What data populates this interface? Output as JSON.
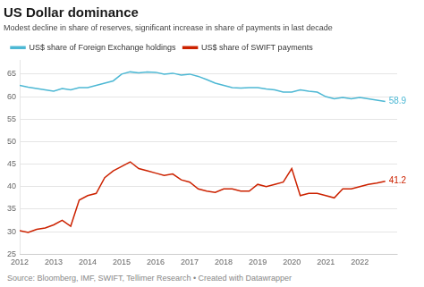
{
  "chart_data": {
    "type": "line",
    "title": "US Dollar dominance",
    "subtitle": "Modest decline in share of reserves, significant increase in share of payments in last decade",
    "source": "Source: Bloomberg, IMF, SWIFT, Tellimer Research • Created with Datawrapper",
    "x": [
      2012.0,
      2012.25,
      2012.5,
      2012.75,
      2013.0,
      2013.25,
      2013.5,
      2013.75,
      2014.0,
      2014.25,
      2014.5,
      2014.75,
      2015.0,
      2015.25,
      2015.5,
      2015.75,
      2016.0,
      2016.25,
      2016.5,
      2016.75,
      2017.0,
      2017.25,
      2017.5,
      2017.75,
      2018.0,
      2018.25,
      2018.5,
      2018.75,
      2019.0,
      2019.25,
      2019.5,
      2019.75,
      2020.0,
      2020.25,
      2020.5,
      2020.75,
      2021.0,
      2021.25,
      2021.5,
      2021.75,
      2022.0,
      2022.25,
      2022.5,
      2022.75
    ],
    "series": [
      {
        "name": "US$ share of Foreign Exchange holdings",
        "color": "#4db8d4",
        "values": [
          62.5,
          62.1,
          61.8,
          61.5,
          61.2,
          61.8,
          61.5,
          62.0,
          62.0,
          62.5,
          63.0,
          63.5,
          65.0,
          65.5,
          65.3,
          65.5,
          65.4,
          65.0,
          65.2,
          64.8,
          65.0,
          64.5,
          63.8,
          63.0,
          62.5,
          62.0,
          61.9,
          62.0,
          62.0,
          61.7,
          61.5,
          61.0,
          61.0,
          61.5,
          61.2,
          61.0,
          60.0,
          59.5,
          59.8,
          59.5,
          59.8,
          59.5,
          59.2,
          58.9
        ]
      },
      {
        "name": "US$ share of SWIFT payments",
        "color": "#cc2200",
        "values": [
          30.2,
          29.8,
          30.5,
          30.8,
          31.5,
          32.5,
          31.2,
          37.0,
          38.0,
          38.5,
          42.0,
          43.5,
          44.5,
          45.5,
          44.0,
          43.5,
          43.0,
          42.5,
          42.8,
          41.5,
          41.0,
          39.5,
          39.0,
          38.7,
          39.5,
          39.5,
          39.0,
          39.0,
          40.5,
          40.0,
          40.5,
          41.0,
          44.0,
          38.0,
          38.5,
          38.5,
          38.0,
          37.5,
          39.5,
          39.5,
          40.0,
          40.5,
          40.8,
          41.2
        ]
      }
    ],
    "annotations": [
      {
        "text": "58.9",
        "x": 2022.75,
        "y": 58.9,
        "color": "#4db8d4"
      },
      {
        "text": "41.2",
        "x": 2022.75,
        "y": 41.2,
        "color": "#cc2200"
      }
    ],
    "xlim": [
      2012.0,
      2023.1
    ],
    "xticks": [
      2012,
      2013,
      2014,
      2015,
      2016,
      2017,
      2018,
      2019,
      2020,
      2021,
      2022
    ],
    "ylim": [
      25,
      68
    ],
    "yticks": [
      25,
      30,
      35,
      40,
      45,
      50,
      55,
      60,
      65
    ],
    "grid": "y",
    "legend": "top",
    "marker": "none"
  }
}
